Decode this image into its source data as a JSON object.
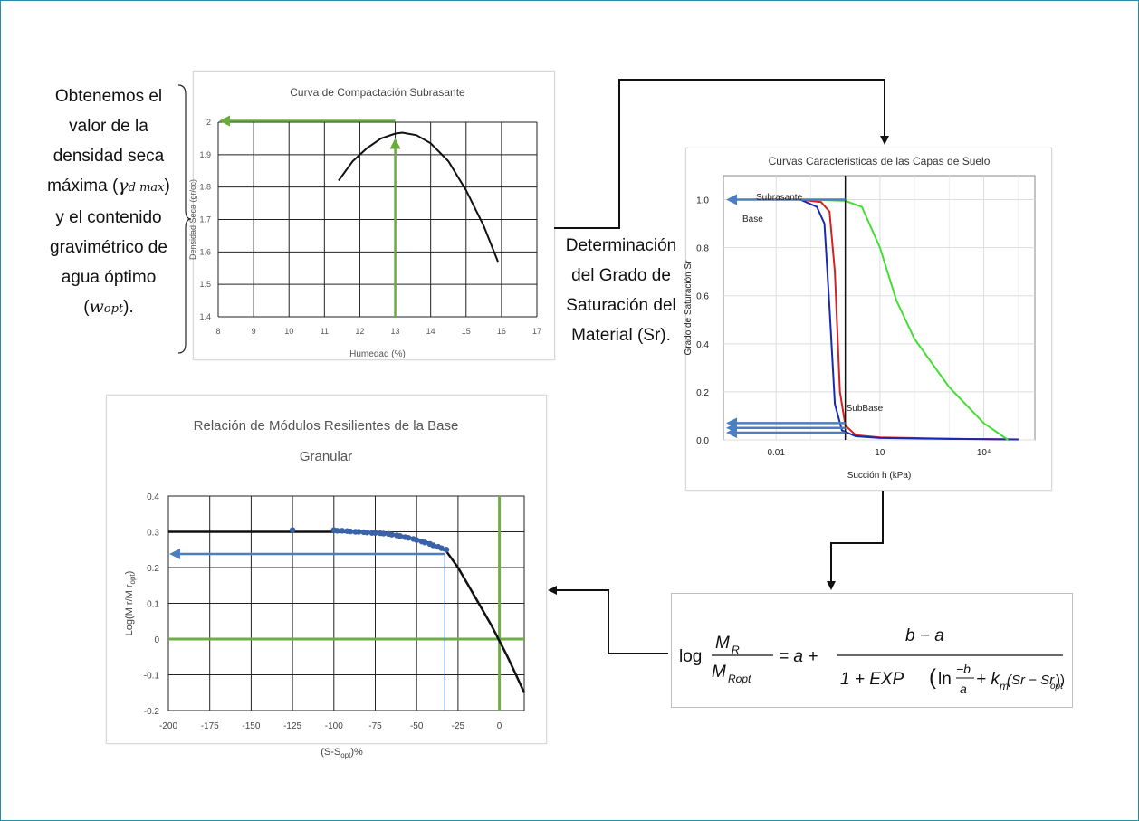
{
  "left_note": {
    "lines": [
      "Obtenemos el",
      "valor de la",
      "densidad seca",
      "máxima (",
      ")",
      "y el contenido",
      "gravimétrico de",
      "agua óptimo",
      ")."
    ],
    "gamma_symbol": "γ",
    "gamma_sub": "d max",
    "w_symbol": "w",
    "w_sub": "opt",
    "w_open": "("
  },
  "mid_note": {
    "lines": [
      "Determinación",
      "del Grado de",
      "Saturación del",
      "Material (Sr)."
    ]
  },
  "colors": {
    "green_arrow": "#6aab3e",
    "blue_arrow": "#4a7fc1",
    "curve_black": "#111111",
    "curve_red": "#d42020",
    "curve_blue": "#1a2ab0",
    "curve_green": "#44dd33",
    "axis_green": "#70ad47",
    "frame": "#2a8aa8"
  },
  "formula": {
    "lhs_log": "log",
    "lhs_num": "M",
    "lhs_num_sub": "R",
    "lhs_den": "M",
    "lhs_den_sub": "Ropt",
    "eq": "= a +",
    "numerator": "b − a",
    "denominator_a": "1 + EXP",
    "denominator_b": "ln",
    "frac_num": "−b",
    "frac_den": "a",
    "denominator_c": "+ k",
    "k_sub": "m",
    "denominator_d": "(Sr − Sr",
    "sr_sub": "opt",
    "denominator_e": "))"
  },
  "chart_data": [
    {
      "type": "line",
      "title": "Curva de Compactación Subrasante",
      "xlabel": "Humedad (%)",
      "ylabel": "Densidad Seca (gr/cc)",
      "xlim": [
        8,
        17
      ],
      "ylim": [
        1.4,
        2
      ],
      "xticks": [
        "8",
        "9",
        "10",
        "11",
        "12",
        "13",
        "14",
        "15",
        "16",
        "17"
      ],
      "yticks": [
        "1.4",
        "1.5",
        "1.6",
        "1.7",
        "1.8",
        "1.9",
        "2"
      ],
      "grid": true,
      "series": [
        {
          "x": [
            11.4,
            11.8,
            12.2,
            12.6,
            13.0,
            13.2,
            13.6,
            14.0,
            14.5,
            15.0,
            15.5,
            15.9
          ],
          "y": [
            1.82,
            1.88,
            1.92,
            1.95,
            1.965,
            1.968,
            1.96,
            1.935,
            1.88,
            1.79,
            1.68,
            1.57
          ]
        }
      ],
      "annotations": {
        "optimum_x": 13,
        "optimum_y": 1.965
      }
    },
    {
      "type": "line",
      "title": "Curvas Caracteristicas de las Capas de Suelo",
      "xlabel": "Succión h (kPa)",
      "ylabel": "Grado de Saturación Sr",
      "xscale": "log",
      "xticks": [
        "0.01",
        "10",
        "10⁴"
      ],
      "yticks": [
        "0.0",
        "0.2",
        "0.4",
        "0.6",
        "0.8",
        "1.0"
      ],
      "ylim": [
        0,
        1.1
      ],
      "grid": true,
      "labels": [
        "Subrasante",
        "Base",
        "SubBase"
      ],
      "series": [
        {
          "color": "red",
          "x": [
            0.0005,
            0.05,
            0.2,
            0.35,
            0.5,
            0.7,
            1.0,
            2,
            10,
            1000,
            100000
          ],
          "y": [
            1.0,
            1.0,
            0.99,
            0.95,
            0.7,
            0.2,
            0.06,
            0.02,
            0.01,
            0.005,
            0.002
          ]
        },
        {
          "color": "blue",
          "x": [
            0.0005,
            0.05,
            0.15,
            0.25,
            0.35,
            0.5,
            0.8,
            2,
            10,
            1000,
            100000
          ],
          "y": [
            1.0,
            1.0,
            0.97,
            0.9,
            0.55,
            0.15,
            0.04,
            0.015,
            0.008,
            0.004,
            0.002
          ]
        },
        {
          "color": "green",
          "x": [
            0.0005,
            0.1,
            1,
            3,
            10,
            30,
            100,
            1000,
            10000,
            50000
          ],
          "y": [
            1.0,
            1.0,
            0.995,
            0.97,
            0.8,
            0.58,
            0.42,
            0.22,
            0.07,
            0.0
          ]
        }
      ],
      "vertical_line_x": 1
    },
    {
      "type": "line",
      "title": "Relación de Módulos Resilientes  de la Base Granular",
      "xlabel": "(S-S",
      "xlabel_sub": "opt",
      "xlabel_end": ")%",
      "ylabel": "Log(M r/M r",
      "ylabel_sub": "opt",
      "ylabel_end": ")",
      "xlim": [
        -200,
        15
      ],
      "ylim": [
        -0.2,
        0.4
      ],
      "xticks": [
        "-200",
        "-175",
        "-150",
        "-125",
        "-100",
        "-75",
        "-50",
        "-25",
        "0"
      ],
      "yticks": [
        "-0.2",
        "-0.1",
        "0",
        "0.1",
        "0.2",
        "0.3",
        "0.4"
      ],
      "grid": true,
      "series": [
        {
          "x": [
            -200,
            -125,
            -100,
            -80,
            -60,
            -50,
            -40,
            -32,
            -25,
            -15,
            -5,
            0,
            5,
            10,
            15
          ],
          "y": [
            0.3,
            0.3,
            0.3,
            0.298,
            0.29,
            0.28,
            0.265,
            0.245,
            0.2,
            0.12,
            0.04,
            -0.005,
            -0.05,
            -0.1,
            -0.15
          ]
        }
      ],
      "points": {
        "x": [
          -125,
          -100,
          -98,
          -95,
          -92,
          -90,
          -87,
          -85,
          -82,
          -80,
          -77,
          -75,
          -72,
          -70,
          -67,
          -65,
          -62,
          -60,
          -57,
          -55,
          -52,
          -50,
          -47,
          -45,
          -42,
          -40,
          -37,
          -35,
          -32
        ],
        "y": [
          0.305,
          0.305,
          0.303,
          0.303,
          0.302,
          0.301,
          0.3,
          0.3,
          0.299,
          0.298,
          0.297,
          0.297,
          0.296,
          0.295,
          0.294,
          0.292,
          0.29,
          0.288,
          0.285,
          0.283,
          0.28,
          0.277,
          0.273,
          0.27,
          0.266,
          0.262,
          0.258,
          0.254,
          0.25
        ]
      },
      "marker_x": -33,
      "marker_y": 0.238
    }
  ]
}
